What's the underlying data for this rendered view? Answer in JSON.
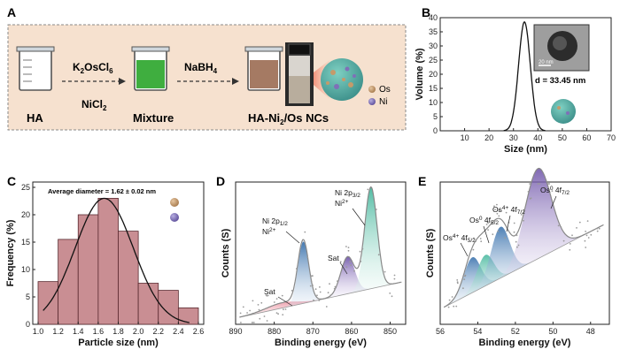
{
  "panels": {
    "a": "A",
    "b": "B",
    "c": "C",
    "d": "D",
    "e": "E"
  },
  "panel_a": {
    "step1_label": "HA",
    "reagent1_k": "K",
    "reagent1_sub1": "2",
    "reagent1_os": "OsCl",
    "reagent1_sub2": "6",
    "reagent2_ni": "NiCl",
    "reagent2_sub": "2",
    "step2_label": "Mixture",
    "reagent3_na": "NaBH",
    "reagent3_sub": "4",
    "product_pre": "HA-Ni",
    "product_sub": "2",
    "product_post": "/Os NCs",
    "legend_os": "Os",
    "legend_ni": "Ni",
    "colors": {
      "bg": "#f6e1cf",
      "os": "#c59a6a",
      "ni": "#7f70b8"
    }
  },
  "chart_data": [
    {
      "id": "B",
      "type": "line",
      "xlabel": "Size (nm)",
      "ylabel": "Volume (%)",
      "xlim": [
        0,
        70
      ],
      "ylim": [
        0,
        40
      ],
      "xticks": [
        10,
        20,
        30,
        40,
        50,
        60,
        70
      ],
      "yticks": [
        0,
        5,
        10,
        15,
        20,
        25,
        30,
        35,
        40
      ],
      "series": [
        {
          "name": "size distribution",
          "peak_x": 34.5,
          "peak_y": 38.5,
          "x_start": 26,
          "x_end": 43
        }
      ],
      "inset_scale": "20 nm",
      "annotation": "d = 33.45 nm"
    },
    {
      "id": "C",
      "type": "bar",
      "xlabel": "Particle size (nm)",
      "ylabel": "Frequency (%)",
      "xlim": [
        1.0,
        2.6
      ],
      "ylim": [
        0,
        25
      ],
      "xticks": [
        "1.0",
        "1.2",
        "1.4",
        "1.6",
        "1.8",
        "2.0",
        "2.2",
        "2.4",
        "2.6"
      ],
      "yticks": [
        0,
        5,
        10,
        15,
        20,
        25
      ],
      "bins": [
        [
          1.0,
          1.2
        ],
        [
          1.2,
          1.4
        ],
        [
          1.4,
          1.6
        ],
        [
          1.6,
          1.8
        ],
        [
          1.8,
          2.0
        ],
        [
          2.0,
          2.2
        ],
        [
          2.2,
          2.4
        ],
        [
          2.4,
          2.6
        ]
      ],
      "values": [
        7.8,
        15.5,
        20,
        23,
        17,
        7.5,
        6.2,
        3
      ],
      "annotation": "Average diameter = 1.62 ± 0.02 nm"
    },
    {
      "id": "D",
      "type": "line",
      "xlabel": "Binding energy (eV)",
      "ylabel": "Counts (S)",
      "xticks": [
        890,
        880,
        870,
        860,
        850
      ],
      "peaks": [
        {
          "label_main": "Ni 2p",
          "label_sub": "1/2",
          "label_state": "Ni",
          "label_state_sup": "2+"
        },
        {
          "label_main": "Ni 2p",
          "label_sub": "3/2",
          "label_state": "Ni",
          "label_state_sup": "2+"
        },
        {
          "label_main": "Sat"
        },
        {
          "label_main": "Sat"
        }
      ]
    },
    {
      "id": "E",
      "type": "line",
      "xlabel": "Binding energy (eV)",
      "ylabel": "Counts (S)",
      "xticks": [
        56,
        54,
        52,
        50,
        48
      ],
      "peaks": [
        {
          "label_a": "Os",
          "label_a_sup": "4+",
          "label_b": "4f",
          "label_b_sub": "5/2"
        },
        {
          "label_a": "Os",
          "label_a_sup": "0",
          "label_b": "4f",
          "label_b_sub": "5/2"
        },
        {
          "label_a": "Os",
          "label_a_sup": "4+",
          "label_b": "4f",
          "label_b_sub": "7/2"
        },
        {
          "label_a": "Os",
          "label_a_sup": "0",
          "label_b": "4f",
          "label_b_sub": "7/2"
        }
      ]
    }
  ]
}
